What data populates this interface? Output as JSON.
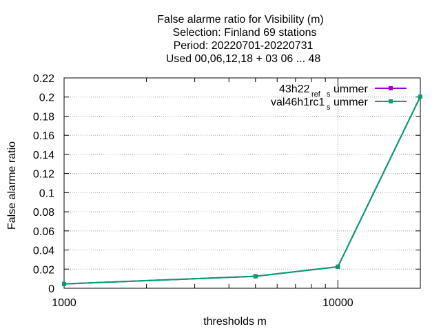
{
  "chart_data": {
    "type": "line",
    "title_lines": [
      "False alarme ratio  for Visibility (m)",
      "Selection: Finland     69 stations",
      "Period: 20220701-20220731",
      "Used  00,06,12,18  + 03 06 ... 48"
    ],
    "xlabel": "thresholds m",
    "ylabel": "False alarme ratio",
    "x_scale": "log",
    "xlim": [
      1000,
      20000
    ],
    "ylim": [
      0,
      0.22
    ],
    "x_ticks": [
      {
        "value": 1000,
        "label": "1000"
      },
      {
        "value": 10000,
        "label": "10000"
      }
    ],
    "y_ticks": [
      {
        "value": 0,
        "label": "0"
      },
      {
        "value": 0.02,
        "label": "0.02"
      },
      {
        "value": 0.04,
        "label": "0.04"
      },
      {
        "value": 0.06,
        "label": "0.06"
      },
      {
        "value": 0.08,
        "label": "0.08"
      },
      {
        "value": 0.1,
        "label": "0.1"
      },
      {
        "value": 0.12,
        "label": "0.12"
      },
      {
        "value": 0.14,
        "label": "0.14"
      },
      {
        "value": 0.16,
        "label": "0.16"
      },
      {
        "value": 0.18,
        "label": "0.18"
      },
      {
        "value": 0.2,
        "label": "0.2"
      },
      {
        "value": 0.22,
        "label": "0.22"
      }
    ],
    "grid": true,
    "legend_position": "top-right",
    "series": [
      {
        "legend_main": "43h22",
        "legend_sub1": "ref",
        "legend_sub2": "ummer",
        "color": "#9400d3",
        "x": [
          1000,
          5000,
          10000,
          20000
        ],
        "y": [
          0.0045,
          0.0125,
          0.0225,
          0.2005
        ]
      },
      {
        "legend_main": "val46h1rc1",
        "legend_sub1": "",
        "legend_sub2": "ummer",
        "color": "#009e73",
        "x": [
          1000,
          5000,
          10000,
          20000
        ],
        "y": [
          0.0045,
          0.0125,
          0.0225,
          0.2005
        ]
      }
    ]
  }
}
